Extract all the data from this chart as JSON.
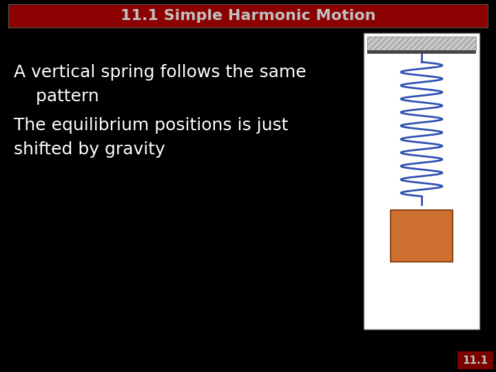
{
  "title": "11.1 Simple Harmonic Motion",
  "title_bg": "#8B0000",
  "title_color": "#C0C0C0",
  "bg_color": "#000000",
  "text_lines": [
    "A vertical spring follows the same",
    "    pattern",
    "The equilibrium positions is just",
    "shifted by gravity"
  ],
  "text_color": "#FFFFFF",
  "text_fontsize": 18,
  "slide_number": "11.1",
  "slide_num_bg": "#7B0000",
  "slide_num_color": "#C0C0C0",
  "spring_color": "#3050B0",
  "box_color": "#CD7030",
  "panel_bg": "#FFFFFF",
  "panel_border": "#888888",
  "ceil_hatch_color": "#C8C8C8",
  "ceil_bar_color": "#444444"
}
